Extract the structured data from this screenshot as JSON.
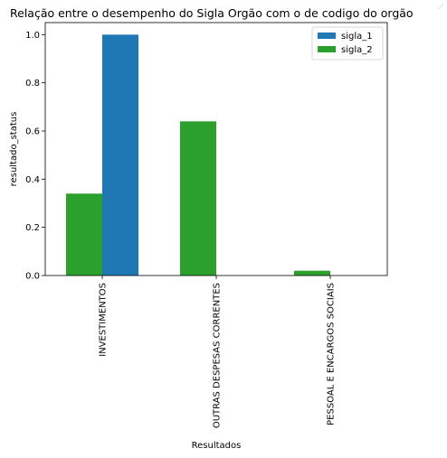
{
  "corner_glyph": "⋰",
  "chart_data": {
    "type": "bar",
    "title": "Relação entre o desempenho do Sigla Orgão com o de codigo do orgão",
    "xlabel": "Resultados",
    "ylabel": "resultado_status",
    "categories": [
      "INVESTIMENTOS",
      "OUTRAS DESPESAS CORRENTES",
      "PESSOAL E ENCARGOS SOCIAIS"
    ],
    "series": [
      {
        "name": "sigla_1",
        "color": "#1f77b4",
        "values": [
          1.0,
          0.0,
          0.0
        ]
      },
      {
        "name": "sigla_2",
        "color": "#2ca02c",
        "values": [
          0.34,
          0.64,
          0.02
        ]
      }
    ],
    "ylim": [
      0,
      1.05
    ],
    "yticks": [
      0.0,
      0.2,
      0.4,
      0.6,
      0.8,
      1.0
    ],
    "ytick_labels": [
      "0.0",
      "0.2",
      "0.4",
      "0.6",
      "0.8",
      "1.0"
    ],
    "legend_position": "top-right",
    "grid": false
  }
}
